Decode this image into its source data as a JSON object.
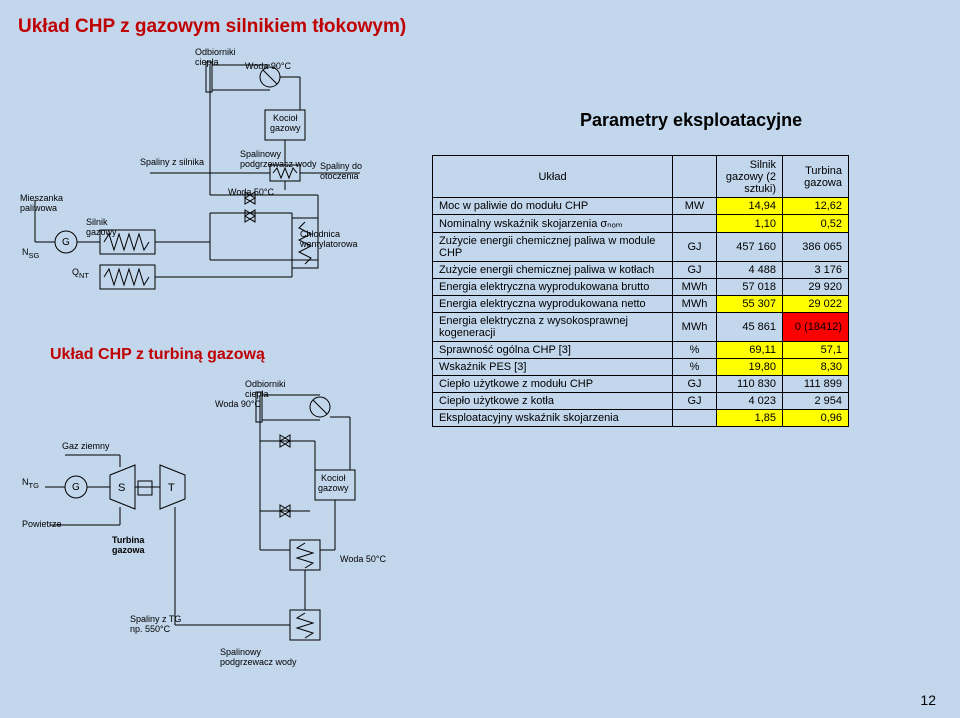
{
  "title": "Układ CHP z gazowym silnikiem tłokowym)",
  "subtitle": "Układ CHP z turbiną gazową",
  "params_title": "Parametry eksploatacyjne",
  "page_number": "12",
  "diagram_labels": {
    "odbiorniki_ciepla": "Odbiorniki\nciepła",
    "woda90": "Woda 90°C",
    "woda50": "Woda 50°C",
    "kociol_gazowy": "Kocioł\ngazowy",
    "spaliny_z_silnika": "Spaliny z silnika",
    "spalinowy_podgrzewacz": "Spalinowy\npodgrzewacz wody",
    "spaliny_do_otoczenia": "Spaliny do\notoczenia",
    "mieszanka_paliwowa": "Mieszanka\npaliwowa",
    "silnik_gazowy": "Silnik\ngazowy",
    "chlodnica": "Chłodnica\nwentylatorowa",
    "n_sg": "N",
    "n_sg_sub": "SG",
    "g": "G",
    "q_nt": "Q",
    "q_nt_sub": "NT",
    "gaz_ziemny": "Gaz ziemny",
    "n_tg": "N",
    "n_tg_sub": "TG",
    "s": "S",
    "t": "T",
    "powietrze": "Powietrze",
    "turbina_gazowa": "Turbina\ngazowa",
    "spaliny_z_tg": "Spaliny z TG\nnp. 550°C"
  },
  "table": {
    "header": [
      "Układ",
      "",
      "Silnik gazowy (2 sztuki)",
      "Turbina gazowa"
    ],
    "rows": [
      {
        "param": "Moc w paliwie do modułu CHP",
        "unit": "MW",
        "v1": "14,94",
        "v2": "12,62",
        "hl": "yellow"
      },
      {
        "param": "Nominalny wskaźnik skojarzenia σₙₒₘ",
        "unit": "",
        "v1": "1,10",
        "v2": "0,52",
        "hl": "yellow"
      },
      {
        "param": "Zużycie energii chemicznej paliwa w module CHP",
        "unit": "GJ",
        "v1": "457 160",
        "v2": "386 065",
        "hl": "none"
      },
      {
        "param": "Zużycie energii chemicznej paliwa w kotłach",
        "unit": "GJ",
        "v1": "4 488",
        "v2": "3 176",
        "hl": "none"
      },
      {
        "param": "Energia elektryczna wyprodukowana brutto",
        "unit": "MWh",
        "v1": "57 018",
        "v2": "29 920",
        "hl": "none"
      },
      {
        "param": "Energia elektryczna wyprodukowana netto",
        "unit": "MWh",
        "v1": "55 307",
        "v2": "29 022",
        "hl": "yellow"
      },
      {
        "param": "Energia elektryczna z wysokosprawnej kogeneracji",
        "unit": "MWh",
        "v1": "45 861",
        "v2": "0 (18412)",
        "hl": "red"
      },
      {
        "param": "Sprawność ogólna CHP [3]",
        "unit": "%",
        "v1": "69,11",
        "v2": "57,1",
        "hl": "yellow"
      },
      {
        "param": "Wskaźnik PES [3]",
        "unit": "%",
        "v1": "19,80",
        "v2": "8,30",
        "hl": "yellow"
      },
      {
        "param": "Ciepło użytkowe z modułu CHP",
        "unit": "GJ",
        "v1": "110 830",
        "v2": "111 899",
        "hl": "none"
      },
      {
        "param": "Ciepło użytkowe z kotła",
        "unit": "GJ",
        "v1": "4 023",
        "v2": "2 954",
        "hl": "none"
      },
      {
        "param": "Eksploatacyjny wskaźnik skojarzenia",
        "unit": "",
        "v1": "1,85",
        "v2": "0,96",
        "hl": "yellow"
      }
    ]
  }
}
